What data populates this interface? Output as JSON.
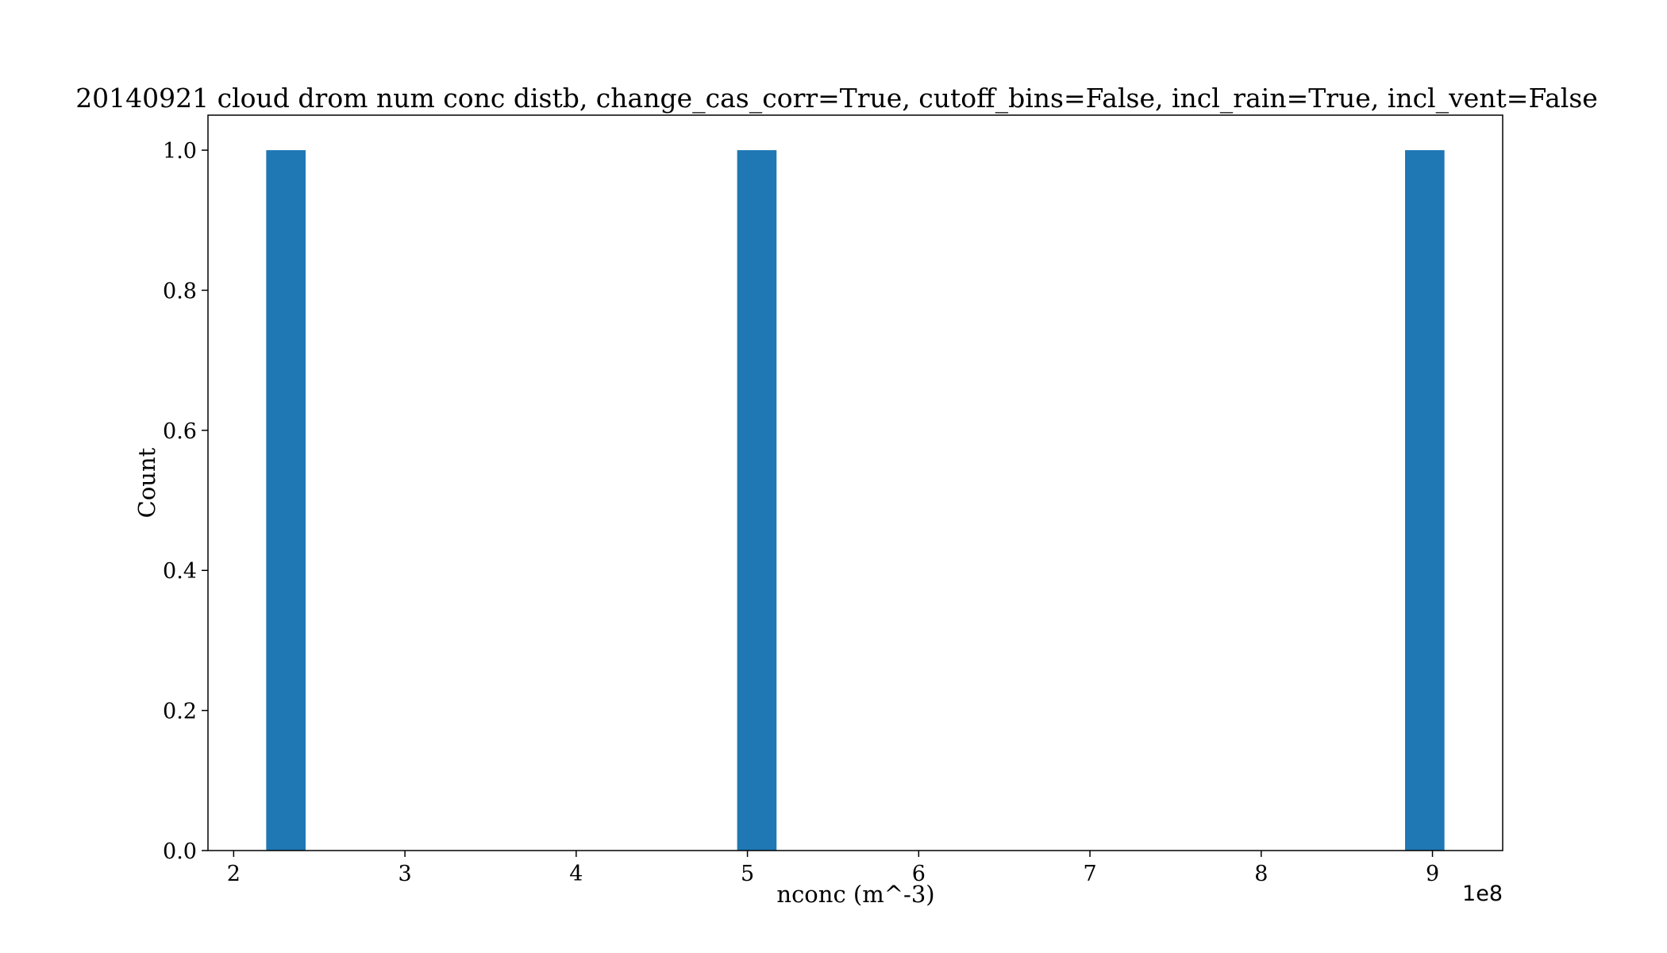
{
  "chart_data": {
    "type": "bar",
    "title": "20140921 cloud drom num conc distb, change_cas_corr=True, cutoff_bins=False, incl_rain=True, incl_vent=False",
    "xlabel": "nconc (m^-3)",
    "ylabel": "Count",
    "x_offset_label": "1e8",
    "xlim": [
      1.85,
      9.41
    ],
    "ylim": [
      0.0,
      1.05
    ],
    "x_ticks": [
      2,
      3,
      4,
      5,
      6,
      7,
      8,
      9
    ],
    "y_ticks": [
      "0.0",
      "0.2",
      "0.4",
      "0.6",
      "0.8",
      "1.0"
    ],
    "y_tick_values": [
      0.0,
      0.2,
      0.4,
      0.6,
      0.8,
      1.0
    ],
    "bars": [
      {
        "x_start": 2.19,
        "x_end": 2.42,
        "value": 1.0
      },
      {
        "x_start": 4.94,
        "x_end": 5.17,
        "value": 1.0
      },
      {
        "x_start": 8.84,
        "x_end": 9.07,
        "value": 1.0
      }
    ],
    "bar_color": "#1f77b4",
    "grid": false,
    "legend": "none"
  }
}
